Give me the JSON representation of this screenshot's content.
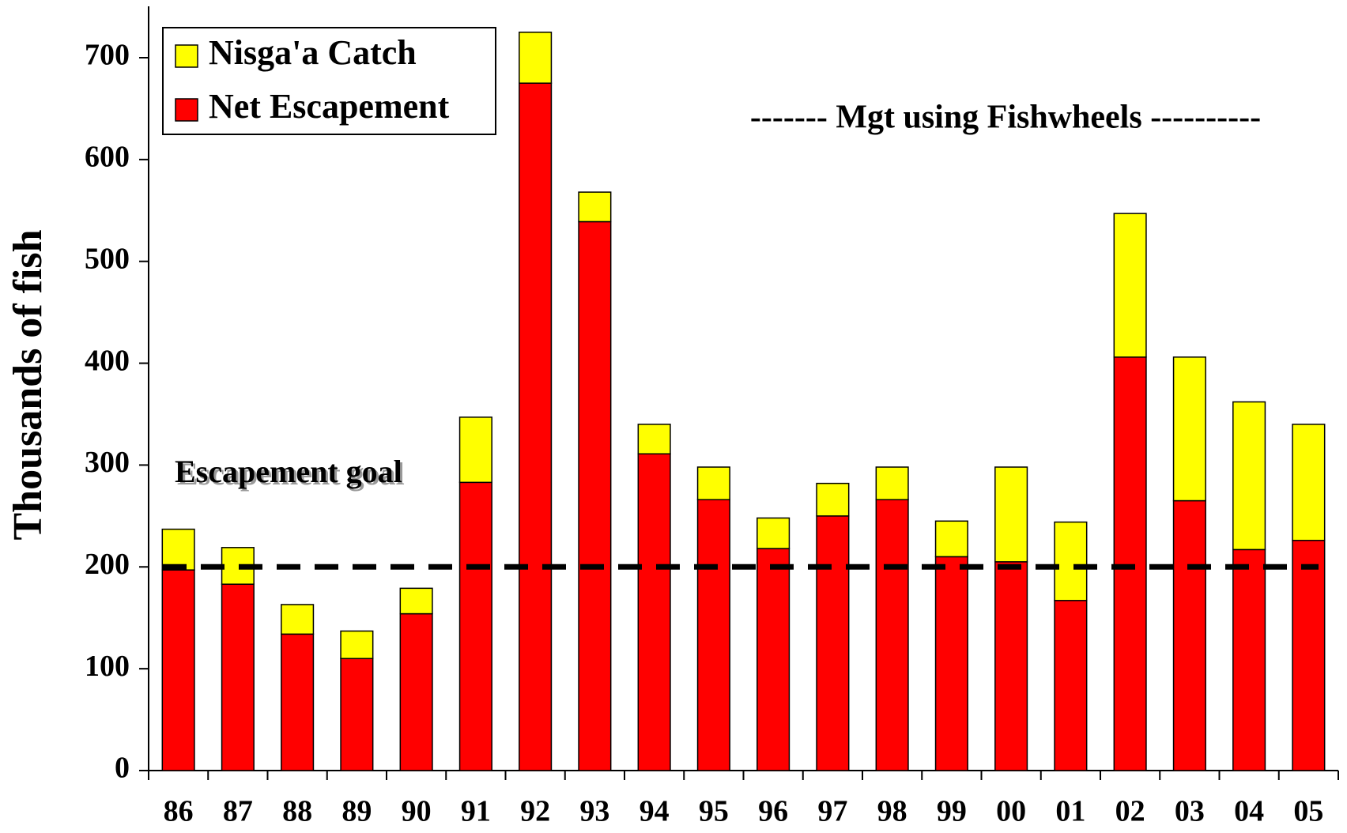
{
  "chart_data": {
    "type": "stacked_bar",
    "y_label": "Thousands of fish",
    "categories": [
      "86",
      "87",
      "88",
      "89",
      "90",
      "91",
      "92",
      "93",
      "94",
      "95",
      "96",
      "97",
      "98",
      "99",
      "00",
      "01",
      "02",
      "03",
      "04",
      "05"
    ],
    "series": [
      {
        "name": "Net Escapement",
        "color": "#ff0000",
        "values": [
          197,
          183,
          134,
          110,
          154,
          283,
          675,
          539,
          311,
          266,
          218,
          250,
          266,
          210,
          205,
          167,
          406,
          265,
          217,
          226
        ]
      },
      {
        "name": "Nisga'a Catch",
        "color": "#ffff00",
        "values": [
          40,
          36,
          29,
          27,
          25,
          64,
          50,
          29,
          29,
          32,
          30,
          32,
          32,
          35,
          93,
          77,
          141,
          141,
          145,
          114
        ]
      }
    ],
    "ylim": [
      0,
      700
    ],
    "yticks": [
      0,
      100,
      200,
      300,
      400,
      500,
      600,
      700
    ],
    "escapement_goal": 200,
    "goal_label": "Escapement goal",
    "annotation": "------- Mgt using Fishwheels ----------",
    "legend": "top-left"
  }
}
